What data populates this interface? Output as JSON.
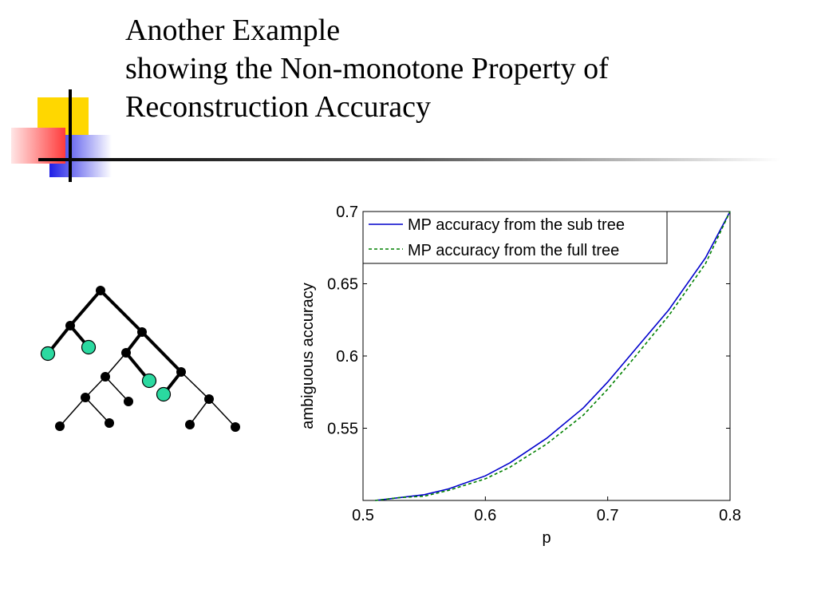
{
  "slide": {
    "title_line1": "Another Example",
    "title_line2": "showing the Non-monotone Property of",
    "title_line3": "Reconstruction Accuracy"
  },
  "colors": {
    "accent_yellow": "#FFD700",
    "accent_red": "#FF5A5A",
    "accent_blue": "#1E1EE6",
    "tree_node": "#000000",
    "observed_leaf": "#2BD9A0",
    "series_sub": "#0000CC",
    "series_full": "#008000"
  },
  "chart_data": {
    "type": "line",
    "xlabel": "p",
    "ylabel": "ambiguous accuracy",
    "xlim": [
      0.5,
      0.8
    ],
    "ylim": [
      0.5,
      0.7
    ],
    "xticks": [
      "0.5",
      "0.6",
      "0.7",
      "0.8"
    ],
    "yticks": [
      "0.55",
      "0.6",
      "0.65",
      "0.7"
    ],
    "grid": false,
    "legend_position": "top-left",
    "series": [
      {
        "name": "MP accuracy from the sub tree",
        "style": "solid",
        "color": "#0000CC",
        "x": [
          0.51,
          0.53,
          0.55,
          0.57,
          0.6,
          0.62,
          0.65,
          0.68,
          0.7,
          0.72,
          0.75,
          0.78,
          0.8
        ],
        "y": [
          0.5,
          0.502,
          0.504,
          0.508,
          0.517,
          0.526,
          0.543,
          0.564,
          0.582,
          0.602,
          0.632,
          0.668,
          0.7
        ]
      },
      {
        "name": "MP accuracy from the full tree",
        "style": "dashed",
        "color": "#008000",
        "x": [
          0.51,
          0.53,
          0.55,
          0.57,
          0.6,
          0.62,
          0.65,
          0.68,
          0.7,
          0.72,
          0.75,
          0.78,
          0.8
        ],
        "y": [
          0.5,
          0.502,
          0.503,
          0.507,
          0.515,
          0.523,
          0.539,
          0.559,
          0.577,
          0.597,
          0.628,
          0.664,
          0.7
        ]
      }
    ]
  }
}
